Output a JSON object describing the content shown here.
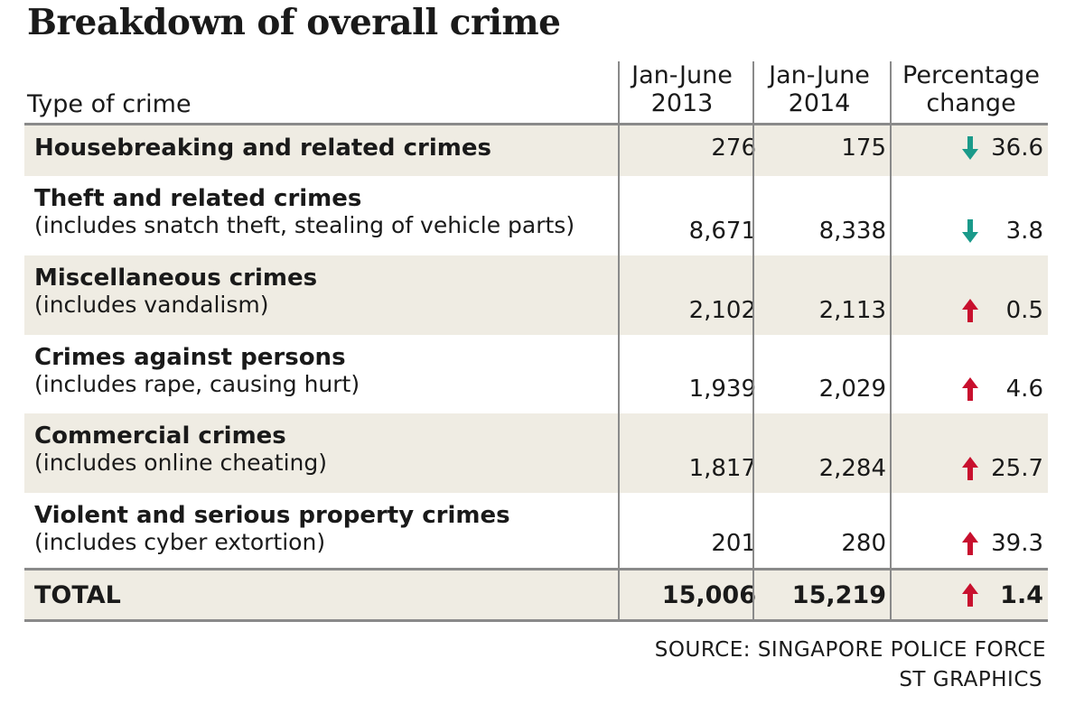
{
  "chart_data": {
    "type": "table",
    "title": "Breakdown of overall crime",
    "columns": {
      "type": "Type of crime",
      "c1_line1": "Jan-June",
      "c1_line2": "2013",
      "c2_line1": "Jan-June",
      "c2_line2": "2014",
      "c3_line1": "Percentage",
      "c3_line2": "change"
    },
    "rows": [
      {
        "name": "Housebreaking and related crimes",
        "sub": "",
        "v2013": "276",
        "v2014": "175",
        "direction": "down",
        "change": "36.6"
      },
      {
        "name": "Theft and related crimes",
        "sub": "(includes snatch theft, stealing of vehicle parts)",
        "v2013": "8,671",
        "v2014": "8,338",
        "direction": "down",
        "change": "3.8"
      },
      {
        "name": "Miscellaneous crimes",
        "sub": "(includes vandalism)",
        "v2013": "2,102",
        "v2014": "2,113",
        "direction": "up",
        "change": "0.5"
      },
      {
        "name": "Crimes against persons",
        "sub": "(includes rape, causing hurt)",
        "v2013": "1,939",
        "v2014": "2,029",
        "direction": "up",
        "change": "4.6"
      },
      {
        "name": "Commercial crimes",
        "sub": "(includes online cheating)",
        "v2013": "1,817",
        "v2014": "2,284",
        "direction": "up",
        "change": "25.7"
      },
      {
        "name": "Violent and serious property crimes",
        "sub": "(includes cyber extortion)",
        "v2013": "201",
        "v2014": "280",
        "direction": "up",
        "change": "39.3"
      }
    ],
    "total": {
      "name": "TOTAL",
      "v2013": "15,006",
      "v2014": "15,219",
      "direction": "up",
      "change": "1.4"
    }
  },
  "colors": {
    "up": "#c8102e",
    "down": "#1a9a8a",
    "shade": "#efece3",
    "rule": "#8a8a8a"
  },
  "footer": {
    "source": "SOURCE: SINGAPORE POLICE FORCE",
    "credit": "ST GRAPHICS"
  }
}
